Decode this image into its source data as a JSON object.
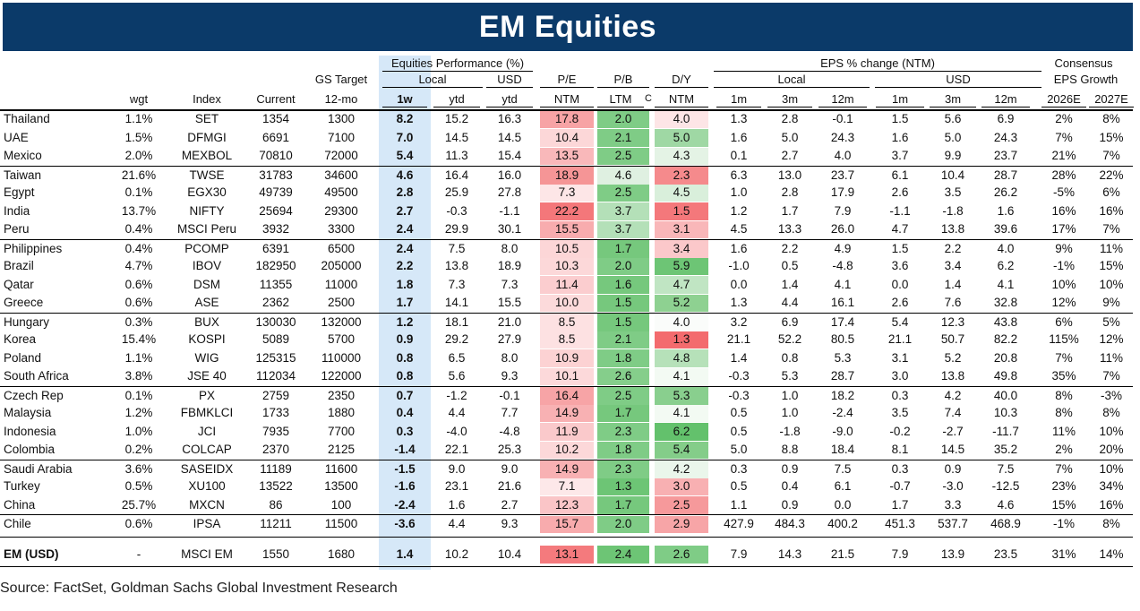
{
  "title": "EM Equities",
  "header": {
    "gs_target": "GS Target",
    "equities_performance": "Equities Performance (%)",
    "local": "Local",
    "usd": "USD",
    "pe": "P/E",
    "pb": "P/B",
    "dy": "D/Y",
    "eps_change": "EPS % change (NTM)",
    "eps_local": "Local",
    "eps_usd": "USD",
    "consensus": "Consensus",
    "eps_growth": "EPS Growth",
    "cols": {
      "wgt": "wgt",
      "index": "Index",
      "current": "Current",
      "target": "12-mo",
      "w1": "1w",
      "ytd_local": "ytd",
      "ytd_usd": "ytd",
      "pe": "NTM",
      "pb": "LTM",
      "c": "C",
      "dy": "NTM",
      "l1m": "1m",
      "l3m": "3m",
      "l12m": "12m",
      "u1m": "1m",
      "u3m": "3m",
      "u12m": "12m",
      "g26": "2026E",
      "g27": "2027E"
    }
  },
  "rows": [
    {
      "country": "Thailand",
      "wgt": "1.1%",
      "index": "SET",
      "current": "1354",
      "target": "1300",
      "w1": "8.2",
      "ytd_local": "15.2",
      "ytd_usd": "16.3",
      "pe": "17.8",
      "pb": "2.0",
      "dy": "4.0",
      "l1m": "1.3",
      "l3m": "2.8",
      "l12m": "-0.1",
      "u1m": "1.5",
      "u3m": "5.6",
      "u12m": "6.9",
      "g26": "2%",
      "g27": "8%",
      "pe_color": "#f7a3a5",
      "pb_color": "#7fcc86",
      "dy_color": "#fde5e6"
    },
    {
      "country": "UAE",
      "wgt": "1.5%",
      "index": "DFMGI",
      "current": "6691",
      "target": "7100",
      "w1": "7.0",
      "ytd_local": "14.5",
      "ytd_usd": "14.5",
      "pe": "10.4",
      "pb": "2.1",
      "dy": "5.0",
      "l1m": "1.6",
      "l3m": "5.0",
      "l12m": "24.3",
      "u1m": "1.6",
      "u3m": "5.0",
      "u12m": "24.3",
      "g26": "7%",
      "g27": "15%",
      "pe_color": "#fcd7d8",
      "pb_color": "#7fcc86",
      "dy_color": "#9fd8a4"
    },
    {
      "country": "Mexico",
      "wgt": "2.0%",
      "index": "MEXBOL",
      "current": "70810",
      "target": "72000",
      "w1": "5.4",
      "ytd_local": "11.3",
      "ytd_usd": "15.4",
      "pe": "13.5",
      "pb": "2.5",
      "dy": "4.3",
      "l1m": "0.1",
      "l3m": "2.7",
      "l12m": "4.0",
      "u1m": "3.7",
      "u3m": "9.9",
      "u12m": "23.7",
      "g26": "21%",
      "g27": "7%",
      "pe_color": "#f9b8ba",
      "pb_color": "#7fcc86",
      "dy_color": "#e4f3e5"
    },
    {
      "country": "Taiwan",
      "wgt": "21.6%",
      "index": "TWSE",
      "current": "31783",
      "target": "34600",
      "w1": "4.6",
      "ytd_local": "16.4",
      "ytd_usd": "16.0",
      "pe": "18.9",
      "pb": "4.6",
      "dy": "2.3",
      "l1m": "6.3",
      "l3m": "13.0",
      "l12m": "23.7",
      "u1m": "6.1",
      "u3m": "10.4",
      "u12m": "28.7",
      "g26": "28%",
      "g27": "22%",
      "pe_color": "#f59596",
      "pb_color": "#dff0e1",
      "dy_color": "#f58a8c",
      "sep": true
    },
    {
      "country": "Egypt",
      "wgt": "0.1%",
      "index": "EGX30",
      "current": "49739",
      "target": "49500",
      "w1": "2.8",
      "ytd_local": "25.9",
      "ytd_usd": "27.8",
      "pe": "7.3",
      "pb": "2.5",
      "dy": "4.5",
      "l1m": "1.0",
      "l3m": "2.8",
      "l12m": "17.9",
      "u1m": "2.6",
      "u3m": "3.5",
      "u12m": "26.2",
      "g26": "-5%",
      "g27": "6%",
      "pe_color": "#fde6e7",
      "pb_color": "#7fcc86",
      "dy_color": "#d9efdb"
    },
    {
      "country": "India",
      "wgt": "13.7%",
      "index": "NIFTY",
      "current": "25694",
      "target": "29300",
      "w1": "2.7",
      "ytd_local": "-0.3",
      "ytd_usd": "-1.1",
      "pe": "22.2",
      "pb": "3.7",
      "dy": "1.5",
      "l1m": "1.2",
      "l3m": "1.7",
      "l12m": "7.9",
      "u1m": "-1.1",
      "u3m": "-1.8",
      "u12m": "1.6",
      "g26": "16%",
      "g27": "16%",
      "pe_color": "#f4777a",
      "pb_color": "#b4e0b8",
      "dy_color": "#f4787b"
    },
    {
      "country": "Peru",
      "wgt": "0.4%",
      "index": "MSCI Peru",
      "current": "3932",
      "target": "3300",
      "w1": "2.4",
      "ytd_local": "29.9",
      "ytd_usd": "30.1",
      "pe": "15.5",
      "pb": "3.7",
      "dy": "3.1",
      "l1m": "4.5",
      "l3m": "13.3",
      "l12m": "26.0",
      "u1m": "4.7",
      "u3m": "13.8",
      "u12m": "39.6",
      "g26": "17%",
      "g27": "7%",
      "pe_color": "#f8acae",
      "pb_color": "#b4e0b8",
      "dy_color": "#f9b7b9"
    },
    {
      "country": "Philippines",
      "wgt": "0.4%",
      "index": "PCOMP",
      "current": "6391",
      "target": "6500",
      "w1": "2.4",
      "ytd_local": "7.5",
      "ytd_usd": "8.0",
      "pe": "10.5",
      "pb": "1.7",
      "dy": "3.4",
      "l1m": "1.6",
      "l3m": "2.2",
      "l12m": "4.9",
      "u1m": "1.5",
      "u3m": "2.2",
      "u12m": "4.0",
      "g26": "9%",
      "g27": "11%",
      "pe_color": "#fcd6d7",
      "pb_color": "#76c87d",
      "dy_color": "#fbc8ca",
      "sep": true
    },
    {
      "country": "Brazil",
      "wgt": "4.7%",
      "index": "IBOV",
      "current": "182950",
      "target": "205000",
      "w1": "2.2",
      "ytd_local": "13.8",
      "ytd_usd": "18.9",
      "pe": "10.3",
      "pb": "2.0",
      "dy": "5.9",
      "l1m": "-1.0",
      "l3m": "0.5",
      "l12m": "-4.8",
      "u1m": "3.6",
      "u3m": "3.4",
      "u12m": "6.2",
      "g26": "-1%",
      "g27": "15%",
      "pe_color": "#fcd8d9",
      "pb_color": "#7fcc86",
      "dy_color": "#6dc575"
    },
    {
      "country": "Qatar",
      "wgt": "0.6%",
      "index": "DSM",
      "current": "11355",
      "target": "11000",
      "w1": "1.8",
      "ytd_local": "7.3",
      "ytd_usd": "7.3",
      "pe": "11.4",
      "pb": "1.6",
      "dy": "4.7",
      "l1m": "0.0",
      "l3m": "1.4",
      "l12m": "4.1",
      "u1m": "0.0",
      "u3m": "1.4",
      "u12m": "4.1",
      "g26": "10%",
      "g27": "10%",
      "pe_color": "#fbcdcf",
      "pb_color": "#76c87d",
      "dy_color": "#c0e5c3"
    },
    {
      "country": "Greece",
      "wgt": "0.6%",
      "index": "ASE",
      "current": "2362",
      "target": "2500",
      "w1": "1.7",
      "ytd_local": "14.1",
      "ytd_usd": "15.5",
      "pe": "10.0",
      "pb": "1.5",
      "dy": "5.2",
      "l1m": "1.3",
      "l3m": "4.4",
      "l12m": "16.1",
      "u1m": "2.6",
      "u3m": "7.6",
      "u12m": "32.8",
      "g26": "12%",
      "g27": "9%",
      "pe_color": "#fcdadb",
      "pb_color": "#76c87d",
      "dy_color": "#8ed191"
    },
    {
      "country": "Hungary",
      "wgt": "0.3%",
      "index": "BUX",
      "current": "130030",
      "target": "132000",
      "w1": "1.2",
      "ytd_local": "18.1",
      "ytd_usd": "21.0",
      "pe": "8.5",
      "pb": "1.5",
      "dy": "4.0",
      "l1m": "3.2",
      "l3m": "6.9",
      "l12m": "17.4",
      "u1m": "5.4",
      "u3m": "12.3",
      "u12m": "43.8",
      "g26": "6%",
      "g27": "5%",
      "pe_color": "#fde1e2",
      "pb_color": "#76c87d",
      "dy_color": "#fafcfa",
      "sep": true
    },
    {
      "country": "Korea",
      "wgt": "15.4%",
      "index": "KOSPI",
      "current": "5089",
      "target": "5700",
      "w1": "0.9",
      "ytd_local": "29.2",
      "ytd_usd": "27.9",
      "pe": "8.5",
      "pb": "2.1",
      "dy": "1.3",
      "l1m": "21.1",
      "l3m": "52.2",
      "l12m": "80.5",
      "u1m": "21.1",
      "u3m": "50.7",
      "u12m": "82.2",
      "g26": "115%",
      "g27": "12%",
      "pe_color": "#fde1e2",
      "pb_color": "#7fcc86",
      "dy_color": "#f36b6e"
    },
    {
      "country": "Poland",
      "wgt": "1.1%",
      "index": "WIG",
      "current": "125315",
      "target": "110000",
      "w1": "0.8",
      "ytd_local": "6.5",
      "ytd_usd": "8.0",
      "pe": "10.9",
      "pb": "1.8",
      "dy": "4.8",
      "l1m": "1.4",
      "l3m": "0.8",
      "l12m": "5.3",
      "u1m": "3.1",
      "u3m": "5.2",
      "u12m": "20.8",
      "g26": "7%",
      "g27": "11%",
      "pe_color": "#fcd2d3",
      "pb_color": "#7fcc86",
      "dy_color": "#b6e1b9"
    },
    {
      "country": "South Africa",
      "wgt": "3.8%",
      "index": "JSE 40",
      "current": "112034",
      "target": "122000",
      "w1": "0.8",
      "ytd_local": "5.6",
      "ytd_usd": "9.3",
      "pe": "10.1",
      "pb": "2.6",
      "dy": "4.1",
      "l1m": "-0.3",
      "l3m": "5.3",
      "l12m": "28.7",
      "u1m": "3.0",
      "u3m": "13.8",
      "u12m": "49.8",
      "g26": "35%",
      "g27": "7%",
      "pe_color": "#fcd9da",
      "pb_color": "#85ce8b",
      "dy_color": "#f3faf3"
    },
    {
      "country": "Czech Rep",
      "wgt": "0.1%",
      "index": "PX",
      "current": "2759",
      "target": "2350",
      "w1": "0.7",
      "ytd_local": "-1.2",
      "ytd_usd": "-0.1",
      "pe": "16.4",
      "pb": "2.5",
      "dy": "5.3",
      "l1m": "-0.3",
      "l3m": "1.0",
      "l12m": "18.2",
      "u1m": "0.3",
      "u3m": "4.2",
      "u12m": "40.0",
      "g26": "8%",
      "g27": "-3%",
      "pe_color": "#f7a4a6",
      "pb_color": "#7fcc86",
      "dy_color": "#89cf8e",
      "sep": true
    },
    {
      "country": "Malaysia",
      "wgt": "1.2%",
      "index": "FBMKLCI",
      "current": "1733",
      "target": "1880",
      "w1": "0.4",
      "ytd_local": "4.4",
      "ytd_usd": "7.7",
      "pe": "14.9",
      "pb": "1.7",
      "dy": "4.1",
      "l1m": "0.5",
      "l3m": "1.0",
      "l12m": "-2.4",
      "u1m": "3.5",
      "u3m": "7.4",
      "u12m": "10.3",
      "g26": "8%",
      "g27": "8%",
      "pe_color": "#f8b1b3",
      "pb_color": "#76c87d",
      "dy_color": "#f3faf3"
    },
    {
      "country": "Indonesia",
      "wgt": "1.0%",
      "index": "JCI",
      "current": "7935",
      "target": "7700",
      "w1": "0.3",
      "ytd_local": "-4.0",
      "ytd_usd": "-4.8",
      "pe": "11.9",
      "pb": "2.3",
      "dy": "6.2",
      "l1m": "0.5",
      "l3m": "-1.8",
      "l12m": "-9.0",
      "u1m": "-0.2",
      "u3m": "-2.7",
      "u12m": "-11.7",
      "g26": "11%",
      "g27": "10%",
      "pe_color": "#fac9cb",
      "pb_color": "#7fcc86",
      "dy_color": "#63c16c"
    },
    {
      "country": "Colombia",
      "wgt": "0.2%",
      "index": "COLCAP",
      "current": "2370",
      "target": "2125",
      "w1": "-1.4",
      "ytd_local": "22.1",
      "ytd_usd": "25.3",
      "pe": "10.2",
      "pb": "1.8",
      "dy": "5.4",
      "l1m": "5.0",
      "l3m": "8.8",
      "l12m": "18.4",
      "u1m": "8.1",
      "u3m": "14.5",
      "u12m": "35.2",
      "g26": "2%",
      "g27": "20%",
      "pe_color": "#fcd8d9",
      "pb_color": "#7fcc86",
      "dy_color": "#84cd89"
    },
    {
      "country": "Saudi Arabia",
      "wgt": "3.6%",
      "index": "SASEIDX",
      "current": "11189",
      "target": "11600",
      "w1": "-1.5",
      "ytd_local": "9.0",
      "ytd_usd": "9.0",
      "pe": "14.9",
      "pb": "2.3",
      "dy": "4.2",
      "l1m": "0.3",
      "l3m": "0.9",
      "l12m": "7.5",
      "u1m": "0.3",
      "u3m": "0.9",
      "u12m": "7.5",
      "g26": "7%",
      "g27": "10%",
      "pe_color": "#f8b1b3",
      "pb_color": "#7fcc86",
      "dy_color": "#eaf6eb",
      "sep": true
    },
    {
      "country": "Turkey",
      "wgt": "0.5%",
      "index": "XU100",
      "current": "13522",
      "target": "13500",
      "w1": "-1.6",
      "ytd_local": "23.1",
      "ytd_usd": "21.6",
      "pe": "7.1",
      "pb": "1.3",
      "dy": "3.0",
      "l1m": "0.5",
      "l3m": "0.4",
      "l12m": "6.1",
      "u1m": "-0.7",
      "u3m": "-3.0",
      "u12m": "-12.5",
      "g26": "23%",
      "g27": "34%",
      "pe_color": "#fde8e9",
      "pb_color": "#6dc575",
      "dy_color": "#f8b0b2"
    },
    {
      "country": "China",
      "wgt": "25.7%",
      "index": "MXCN",
      "current": "86",
      "target": "100",
      "w1": "-2.4",
      "ytd_local": "1.6",
      "ytd_usd": "2.7",
      "pe": "12.3",
      "pb": "1.7",
      "dy": "2.5",
      "l1m": "1.1",
      "l3m": "0.9",
      "l12m": "0.0",
      "u1m": "1.7",
      "u3m": "3.3",
      "u12m": "4.6",
      "g26": "15%",
      "g27": "16%",
      "pe_color": "#fac5c7",
      "pb_color": "#76c87d",
      "dy_color": "#f6999b"
    },
    {
      "country": "Chile",
      "wgt": "0.6%",
      "index": "IPSA",
      "current": "11211",
      "target": "11500",
      "w1": "-3.6",
      "ytd_local": "4.4",
      "ytd_usd": "9.3",
      "pe": "15.7",
      "pb": "2.0",
      "dy": "2.9",
      "l1m": "427.9",
      "l3m": "484.3",
      "l12m": "400.2",
      "u1m": "451.3",
      "u3m": "537.7",
      "u12m": "468.9",
      "g26": "-1%",
      "g27": "8%",
      "pe_color": "#f8abad",
      "pb_color": "#7fcc86",
      "dy_color": "#f7a5a7",
      "sep": true
    }
  ],
  "em": {
    "country": "EM (USD)",
    "wgt": "-",
    "index": "MSCI EM",
    "current": "1550",
    "target": "1680",
    "w1": "1.4",
    "ytd_local": "10.2",
    "ytd_usd": "10.4",
    "pe": "13.1",
    "pb": "2.4",
    "dy": "2.6",
    "l1m": "7.9",
    "l3m": "14.3",
    "l12m": "21.5",
    "u1m": "7.9",
    "u3m": "13.9",
    "u12m": "23.5",
    "g26": "31%",
    "g27": "14%",
    "pe_color": "#f47a7d",
    "pb_color": "#6dc575",
    "dy_color": "#7fcc86"
  },
  "source": "Source: FactSet, Goldman Sachs Global Investment Research",
  "colors": {
    "banner": "#0b3a69",
    "week_highlight": "#d6e8f8"
  }
}
